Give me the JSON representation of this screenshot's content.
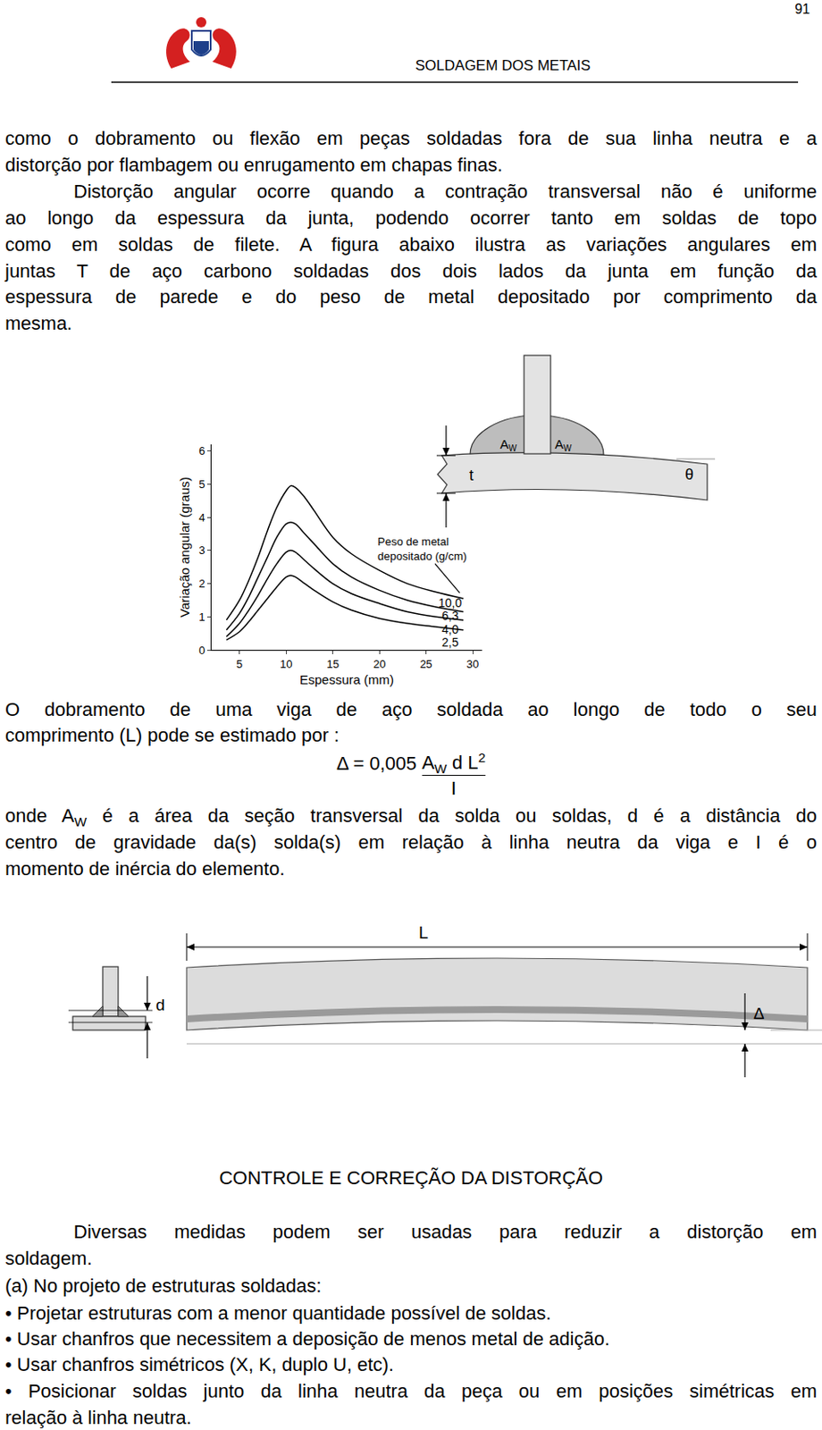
{
  "header": {
    "page_number": "91",
    "title": "SOLDAGEM DOS METAIS"
  },
  "paragraphs_top": [
    {
      "indent": false,
      "lines": [
        "como o dobramento ou flexão em peças soldadas fora de sua linha neutra e a",
        "distorção por flambagem ou enrugamento em chapas finas."
      ]
    },
    {
      "indent": true,
      "lines": [
        "Distorção angular ocorre quando a contração transversal não é uniforme",
        "ao longo da espessura da junta, podendo ocorrer tanto em soldas de topo",
        "como em soldas de filete. A figura abaixo ilustra as variações angulares em",
        "juntas T de aço carbono soldadas dos dois lados da junta em função da",
        "espessura de parede e do peso de metal depositado por comprimento da",
        "mesma."
      ]
    }
  ],
  "figure_tjoint": {
    "thickness": "t",
    "weld_area": "A",
    "weld_area_sub": "W",
    "angle": "θ"
  },
  "chart_data": {
    "type": "line",
    "x_label": "Espessura (mm)",
    "y_label": "Variação angular (graus)",
    "annotation": [
      "Peso de metal",
      "depositado (g/cm)"
    ],
    "x": [
      3.6,
      5,
      6,
      7,
      8,
      9,
      10,
      10.5,
      11,
      12,
      13,
      15,
      17,
      20,
      23,
      26,
      29
    ],
    "series": [
      {
        "name": "10,0",
        "color": "#000000",
        "values": [
          0.9,
          1.5,
          2.1,
          2.8,
          3.6,
          4.3,
          4.8,
          4.95,
          4.9,
          4.6,
          4.2,
          3.4,
          2.9,
          2.4,
          2.0,
          1.75,
          1.55
        ]
      },
      {
        "name": "6,3",
        "color": "#000000",
        "values": [
          0.6,
          1.1,
          1.6,
          2.2,
          2.8,
          3.4,
          3.8,
          3.85,
          3.8,
          3.5,
          3.2,
          2.6,
          2.2,
          1.8,
          1.5,
          1.3,
          1.15
        ]
      },
      {
        "name": "4,0",
        "color": "#000000",
        "values": [
          0.4,
          0.8,
          1.2,
          1.65,
          2.15,
          2.6,
          2.95,
          3.0,
          2.95,
          2.7,
          2.45,
          2.0,
          1.7,
          1.4,
          1.15,
          1.0,
          0.9
        ]
      },
      {
        "name": "2,5",
        "color": "#000000",
        "values": [
          0.3,
          0.55,
          0.85,
          1.2,
          1.55,
          1.9,
          2.2,
          2.25,
          2.2,
          2.0,
          1.8,
          1.45,
          1.2,
          0.95,
          0.8,
          0.7,
          0.6
        ]
      }
    ],
    "xlim": [
      2,
      31
    ],
    "ylim": [
      0,
      6.2
    ],
    "xticks": [
      5,
      10,
      15,
      20,
      25,
      30
    ],
    "yticks": [
      0,
      1,
      2,
      3,
      4,
      5,
      6
    ],
    "grid": false,
    "line_style": "solid"
  },
  "formula_intro": {
    "indent": false,
    "lines": [
      "O dobramento de uma viga de aço soldada ao longo de todo o seu",
      "comprimento (L) pode se estimado por :"
    ]
  },
  "formula": {
    "lhs": "Δ = 0,005 ",
    "numerator": [
      "A",
      {
        "sub": "W"
      },
      " d L",
      {
        "sup": "2"
      }
    ],
    "denominator": "I"
  },
  "formula_explanation": {
    "indent": false,
    "lines": [
      [
        "onde A",
        {
          "sub": "W"
        },
        " é a área da seção transversal da solda ou soldas, d é a distância do"
      ],
      "centro de gravidade da(s) solda(s) em relação à linha neutra da viga e I é o",
      "momento de inércia do elemento."
    ]
  },
  "figure_beam": {
    "length": "L",
    "weld_distance": "d",
    "deflection": "Δ"
  },
  "section": {
    "title": "CONTROLE E CORREÇÃO DA DISTORÇÃO",
    "paragraph": {
      "indent": true,
      "lines": [
        "Diversas medidas podem ser usadas para reduzir a distorção em",
        "soldagem."
      ]
    },
    "subheading": "(a) No projeto de estruturas soldadas:",
    "bullet_symbol": "•",
    "bullets": [
      [
        "Projetar estruturas com a menor quantidade possível de soldas."
      ],
      [
        "Usar chanfros que necessitem a deposição de menos metal de adição."
      ],
      [
        "Usar chanfros simétricos (X, K, duplo U, etc)."
      ],
      [
        "Posicionar soldas junto da linha neutra da peça ou em posições simétricas em",
        "relação à linha neutra."
      ]
    ]
  }
}
